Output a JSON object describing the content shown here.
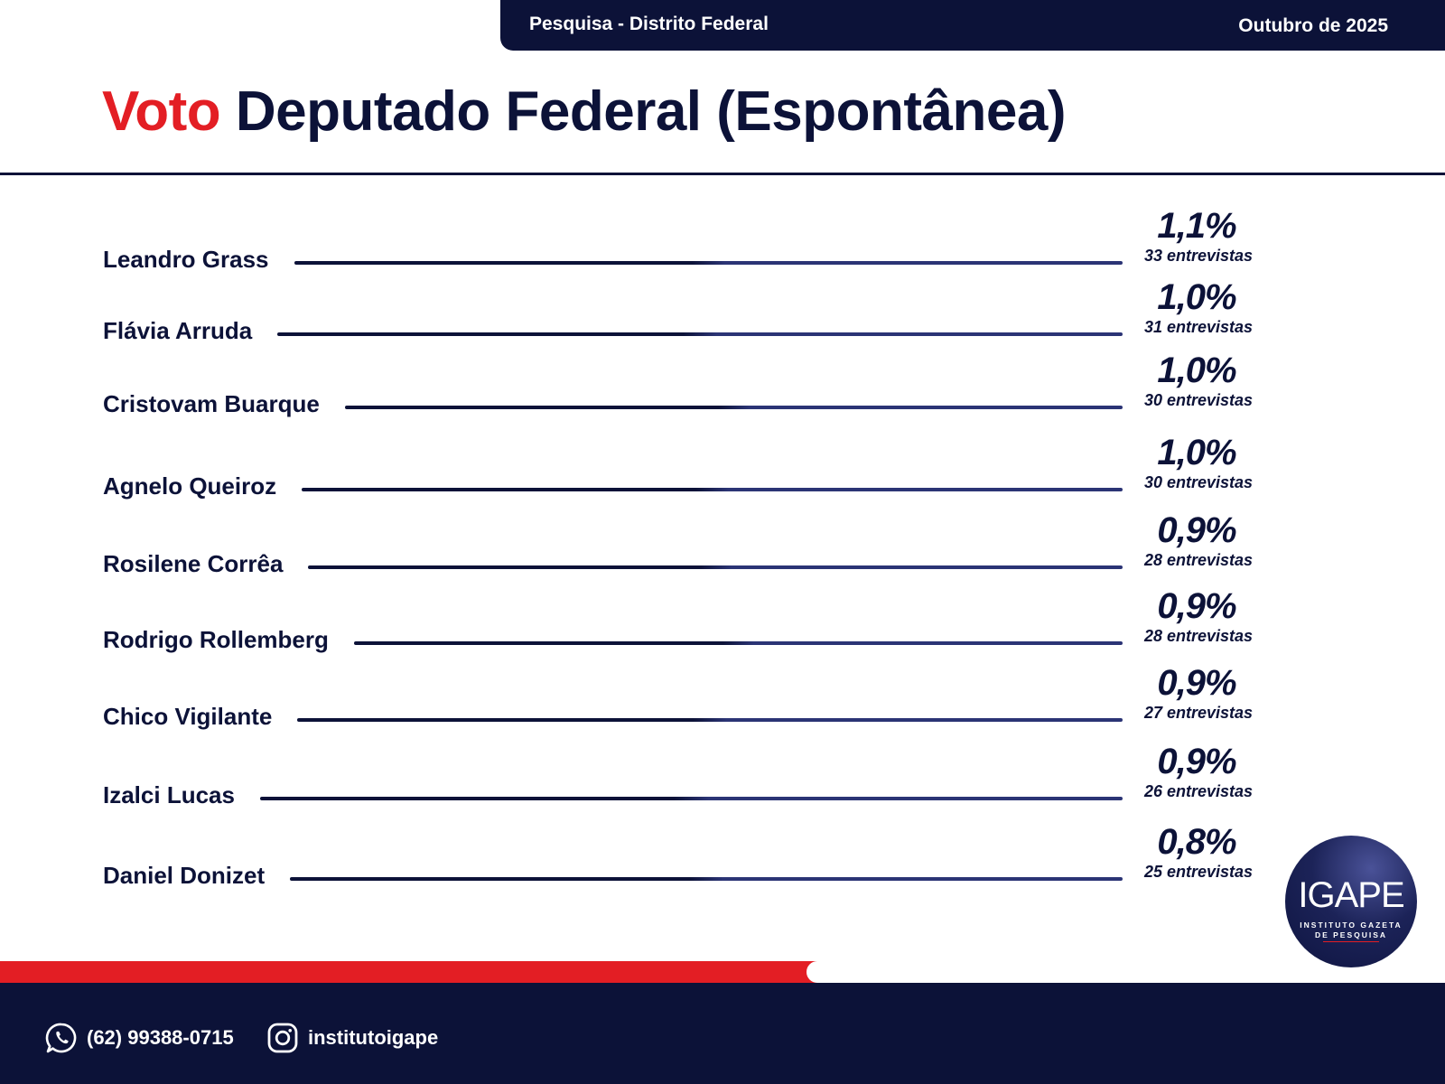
{
  "header": {
    "survey_label": "Pesquisa - Distrito Federal",
    "date_label": "Outubro de 2025"
  },
  "title": {
    "accent": "Voto",
    "rest": "Deputado Federal (Espontânea)"
  },
  "colors": {
    "navy": "#0c1238",
    "red": "#e31e24",
    "line_light": "#2b3475"
  },
  "chart_data": {
    "type": "table",
    "title": "Voto Deputado Federal (Espontânea)",
    "categories": [
      "Leandro Grass",
      "Flávia Arruda",
      "Cristovam Buarque",
      "Agnelo Queiroz",
      "Rosilene Corrêa",
      "Rodrigo Rollemberg",
      "Chico Vigilante",
      "Izalci Lucas",
      "Daniel Donizet"
    ],
    "series": [
      {
        "values": [
          1.1,
          1.0,
          1.0,
          1.0,
          0.9,
          0.9,
          0.9,
          0.9,
          0.8
        ]
      },
      {
        "values": [
          33,
          31,
          30,
          30,
          28,
          28,
          27,
          26,
          25
        ]
      }
    ],
    "rows": [
      {
        "name": "Leandro Grass",
        "pct_label": "1,1%",
        "count_label": "33 entrevistas"
      },
      {
        "name": "Flávia Arruda",
        "pct_label": "1,0%",
        "count_label": "31 entrevistas"
      },
      {
        "name": "Cristovam Buarque",
        "pct_label": "1,0%",
        "count_label": "30 entrevistas"
      },
      {
        "name": "Agnelo Queiroz",
        "pct_label": "1,0%",
        "count_label": "30 entrevistas"
      },
      {
        "name": "Rosilene Corrêa",
        "pct_label": "0,9%",
        "count_label": "28 entrevistas"
      },
      {
        "name": "Rodrigo Rollemberg",
        "pct_label": "0,9%",
        "count_label": "28 entrevistas"
      },
      {
        "name": "Chico Vigilante",
        "pct_label": "0,9%",
        "count_label": "27 entrevistas"
      },
      {
        "name": "Izalci Lucas",
        "pct_label": "0,9%",
        "count_label": "26 entrevistas"
      },
      {
        "name": "Daniel Donizet",
        "pct_label": "0,8%",
        "count_label": "25 entrevistas"
      }
    ]
  },
  "logo": {
    "mark": "IGAPE",
    "line1": "INSTITUTO GAZETA",
    "line2": "DE PESQUISA"
  },
  "footer": {
    "phone": "(62) 99388-0715",
    "phone_icon": "whatsapp-icon",
    "instagram": "institutoigape",
    "instagram_icon": "instagram-icon"
  }
}
